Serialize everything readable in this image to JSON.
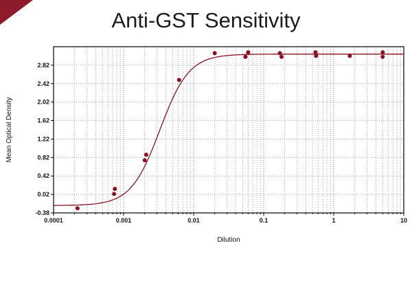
{
  "colors": {
    "corner_accent": "#8e1b2b"
  },
  "chart_data": {
    "type": "scatter",
    "title": "Anti-GST Sensitivity",
    "xlabel": "Dilution",
    "ylabel": "Mean Optical Density",
    "x_scale": "log",
    "xlim": [
      0.0001,
      10
    ],
    "ylim": [
      -0.38,
      3.22
    ],
    "x_tick_labels": [
      "0.0001",
      "0.001",
      "0.01",
      "0.1",
      "1",
      "10"
    ],
    "y_tick_labels": [
      "-0.38",
      "0.02",
      "0.42",
      "0.82",
      "1.22",
      "1.62",
      "2.02",
      "2.42",
      "2.82"
    ],
    "grid": true,
    "legend": false,
    "line_color": "#8b0f1f",
    "point_color": "#8b0f1f",
    "points": [
      [
        0.00022,
        -0.28
      ],
      [
        0.00073,
        0.03
      ],
      [
        0.00075,
        0.14
      ],
      [
        0.002,
        0.76
      ],
      [
        0.0021,
        0.88
      ],
      [
        0.0062,
        2.5
      ],
      [
        0.02,
        3.08
      ],
      [
        0.055,
        3.0
      ],
      [
        0.06,
        3.1
      ],
      [
        0.17,
        3.08
      ],
      [
        0.18,
        3.0
      ],
      [
        0.55,
        3.1
      ],
      [
        0.56,
        3.02
      ],
      [
        1.7,
        3.02
      ],
      [
        5.0,
        3.1
      ],
      [
        5.0,
        3.0
      ]
    ],
    "curve": {
      "model": "4PL",
      "bottom": -0.22,
      "top": 3.06,
      "ec50": 0.0033,
      "hill": 2.1
    }
  }
}
